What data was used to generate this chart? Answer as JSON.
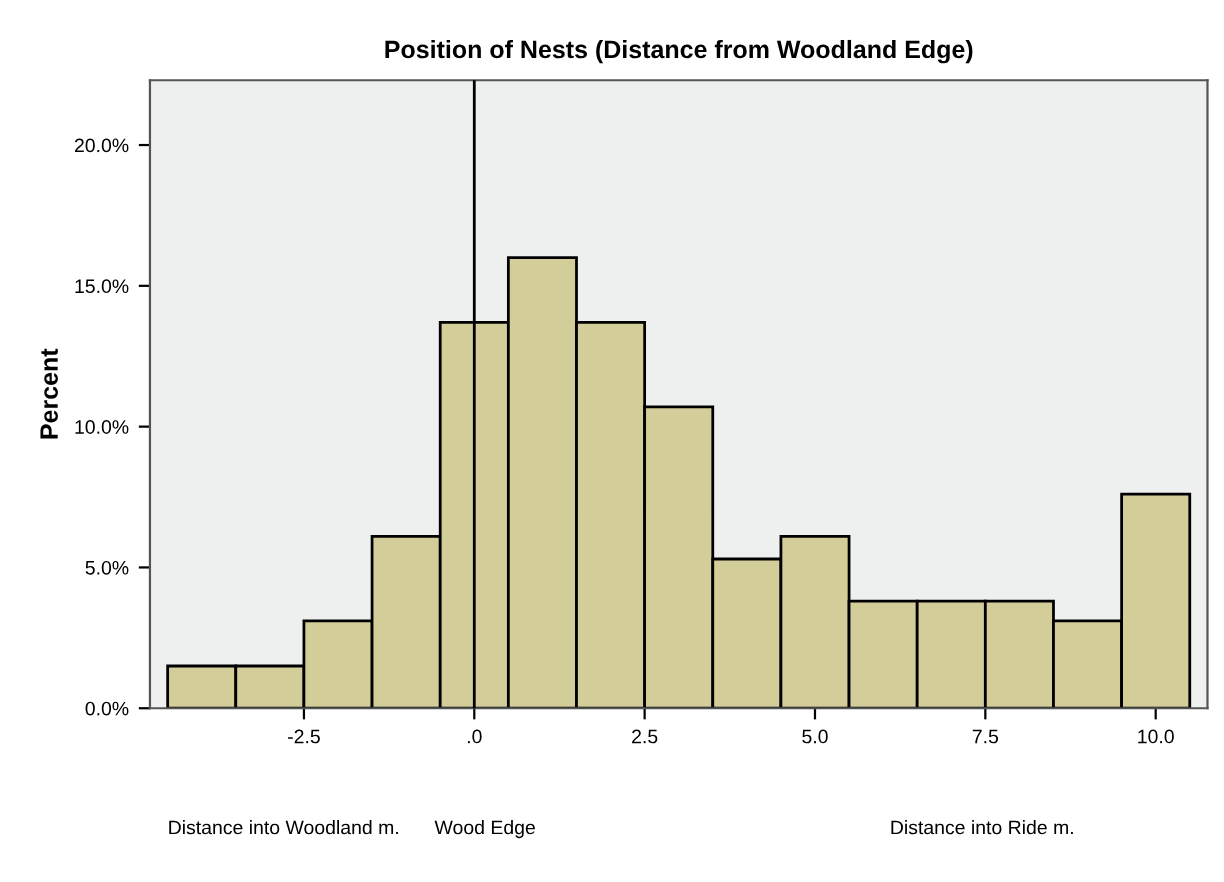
{
  "chart_data": {
    "type": "histogram",
    "title": "Position of Nests (Distance from Woodland Edge)",
    "ylabel": "Percent",
    "bins": [
      -4.5,
      -3.5,
      -2.5,
      -1.5,
      -0.5,
      0.5,
      1.5,
      2.5,
      3.5,
      4.5,
      5.5,
      6.5,
      7.5,
      8.5,
      9.5,
      10.5
    ],
    "values": [
      1.5,
      1.5,
      3.1,
      6.1,
      13.7,
      16.0,
      13.7,
      10.7,
      5.3,
      6.1,
      3.8,
      3.8,
      3.8,
      3.1,
      7.6
    ],
    "color": "#d3ce99",
    "xlim": [
      -4.76,
      10.76
    ],
    "ylim": [
      0,
      22.3
    ],
    "xticks": [
      -2.5,
      {
        "value": 0,
        "label": ".0"
      },
      2.5,
      {
        "value": 5,
        "label": "5.0"
      },
      7.5,
      {
        "value": 10,
        "label": "10.0"
      }
    ],
    "yticks": [
      {
        "value": 0,
        "label": "0.0%"
      },
      {
        "value": 5,
        "label": "5.0%"
      },
      {
        "value": 10,
        "label": "10.0%"
      },
      {
        "value": 15,
        "label": "15.0%"
      },
      {
        "value": 20,
        "label": "20.0%"
      }
    ],
    "ref_lines": [
      {
        "axis": "x",
        "value": 0,
        "color": "#000000"
      }
    ],
    "annotations": [
      "Distance into Woodland m.",
      "Wood Edge",
      "Distance into Ride m."
    ],
    "grid": false,
    "legend": false
  }
}
